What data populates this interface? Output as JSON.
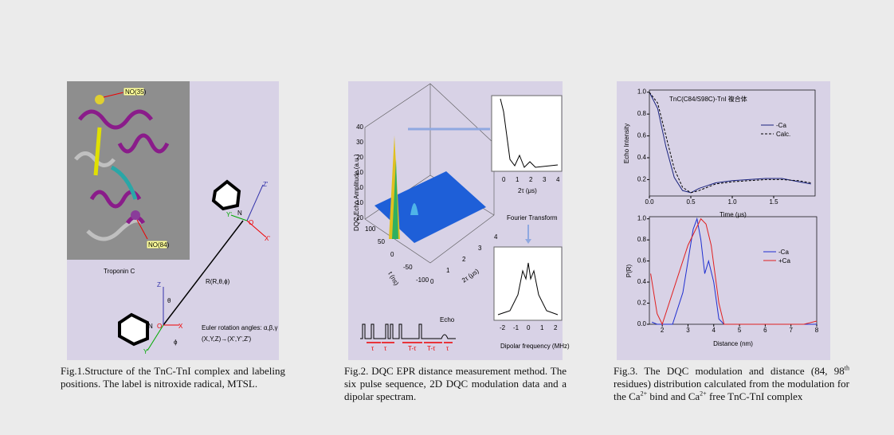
{
  "fig1": {
    "labels": {
      "no35": "NO(35)",
      "no84": "NO(84)",
      "protein": "Troponin C",
      "vector": "R(R,θ,ϕ)",
      "euler": "Euler rotation angles: α,β,γ",
      "transform": "(X,Y,Z)→(X',Y',Z')",
      "z": "Z",
      "x": "X",
      "y": "Y",
      "theta": "θ",
      "phi": "ϕ",
      "n": "N",
      "o": "O",
      "z2": "Z'",
      "y2": "Y'",
      "x2": "X'",
      "n2": "N",
      "o2": "O"
    },
    "caption": "Fig.1.Structure of   the TnC-TnI complex and labeling positions. The label is nitroxide radical, MTSL."
  },
  "fig2": {
    "labels": {
      "zaxis": "DQC Echo Amplitude (a.u.)",
      "taxis": "t (ns)",
      "tauaxis": "2τ (μs)",
      "tau_inset": "2τ (μs)",
      "ft": "Fourier Transform",
      "freq": "Dipolar frequency (MHz)",
      "echo": "Echo",
      "t1": "τ",
      "t2": "τ",
      "t3": "T-τ",
      "t4": "T-τ",
      "t5": "τ"
    },
    "zticks": [
      "40",
      "30",
      "20",
      "10",
      "0",
      "-10",
      "-20"
    ],
    "tticks": [
      "100",
      "50",
      "0",
      "-50",
      "-100"
    ],
    "tauticks": [
      "0",
      "1",
      "2",
      "3",
      "4"
    ],
    "inset_xticks": [
      "0",
      "1",
      "2",
      "3",
      "4"
    ],
    "inset_yticks": [
      "1",
      "0.5"
    ],
    "spec_xticks": [
      "-2",
      "-1",
      "0",
      "1",
      "2"
    ],
    "caption": "Fig.2. DQC EPR distance measurement method. The six pulse sequence, 2D DQC modulation data and a dipolar spectram."
  },
  "fig3": {
    "caption": [
      {
        "text": "Fig.3. The DQC modulation and distance (84, 98"
      },
      {
        "sup": "th"
      },
      {
        "text": " residues) distribution calculated from the modulation for the Ca"
      },
      {
        "sup": "2+"
      },
      {
        "text": " bind and Ca"
      },
      {
        "sup": "2+"
      },
      {
        "text": " free TnC-TnI complex"
      }
    ]
  },
  "chart_data": [
    {
      "type": "line",
      "title": "TnC(C84/S98C)-TnI 複合体",
      "x_label": "Time (μs)",
      "y_label": "Echo Intensity",
      "x": [
        0,
        0.1,
        0.2,
        0.3,
        0.4,
        0.5,
        0.6,
        0.8,
        1.0,
        1.2,
        1.4,
        1.6,
        1.8,
        1.95
      ],
      "series": [
        {
          "name": "-Ca",
          "color": "#1a237e",
          "dash": false,
          "values": [
            1.0,
            0.85,
            0.5,
            0.22,
            0.1,
            0.08,
            0.12,
            0.17,
            0.19,
            0.2,
            0.21,
            0.21,
            0.18,
            0.16
          ]
        },
        {
          "name": "Calc.",
          "color": "#000000",
          "dash": true,
          "values": [
            1.0,
            0.9,
            0.6,
            0.3,
            0.13,
            0.08,
            0.1,
            0.16,
            0.18,
            0.19,
            0.2,
            0.2,
            0.19,
            0.17
          ]
        }
      ],
      "xlim": [
        0,
        2.0
      ],
      "ylim": [
        0.05,
        1.02
      ],
      "xticks": [
        {
          "value": 0,
          "label": "0.0"
        },
        0.5,
        {
          "value": 1,
          "label": "1.0"
        },
        1.5
      ],
      "yticks": [
        0.2,
        0.4,
        0.6,
        0.8,
        {
          "value": 1,
          "label": "1.0"
        }
      ]
    },
    {
      "type": "line",
      "x_label": "Distance (nm)",
      "y_label": "P(R)",
      "series": [
        {
          "name": "-Ca",
          "color": "#1f2fd0",
          "dash": false,
          "x": [
            1.6,
            1.8,
            2.0,
            2.4,
            2.8,
            3.0,
            3.2,
            3.35,
            3.5,
            3.65,
            3.8,
            4.0,
            4.2,
            4.4,
            5,
            6,
            7,
            8
          ],
          "values": [
            0.02,
            0.0,
            0.0,
            0.0,
            0.3,
            0.6,
            0.9,
            1.0,
            0.8,
            0.48,
            0.6,
            0.4,
            0.05,
            0.0,
            0.0,
            0.0,
            0.0,
            0.0
          ]
        },
        {
          "name": "+Ca",
          "color": "#e02020",
          "dash": false,
          "x": [
            1.55,
            1.8,
            2.0,
            2.4,
            3.0,
            3.3,
            3.5,
            3.7,
            3.9,
            4.2,
            4.4,
            5,
            6,
            7,
            7.5,
            8
          ],
          "values": [
            0.48,
            0.1,
            0.0,
            0.3,
            0.75,
            0.9,
            1.0,
            0.95,
            0.75,
            0.2,
            0.0,
            0.0,
            0.0,
            0.0,
            0.0,
            0.03
          ]
        }
      ],
      "xlim": [
        1.5,
        8
      ],
      "ylim": [
        0,
        1.02
      ],
      "xticks": [
        2,
        3,
        4,
        5,
        6,
        7,
        8
      ],
      "yticks": [
        {
          "value": 0,
          "label": "0.0"
        },
        0.2,
        0.4,
        0.6,
        0.8,
        {
          "value": 1,
          "label": "1.0"
        }
      ]
    }
  ]
}
